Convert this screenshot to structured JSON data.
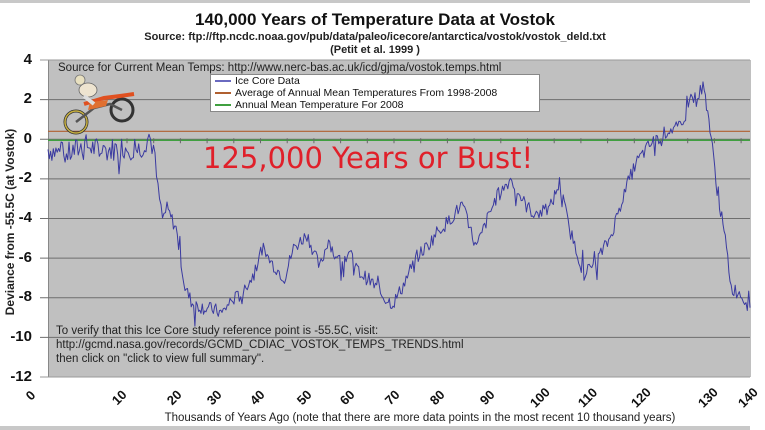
{
  "chart_data": {
    "type": "line",
    "title": "140,000 Years of Temperature Data at Vostok",
    "subtitle": "Source: ftp://ftp.ncdc.noaa.gov/pub/data/paleo/icecore/antarctica/vostok/vostok_deld.txt",
    "subtitle2": "(Petit et al. 1999 )",
    "xlabel": "Thousands of Years Ago (note that there are more data points in the most recent 10 thousand years)",
    "ylabel": "Deviance from -55.5C (at Vostok)",
    "ylim": [
      -12,
      4
    ],
    "yticks": [
      "4",
      "2",
      "0",
      "-2",
      "-4",
      "-6",
      "-8",
      "-10",
      "-12"
    ],
    "xticks": [
      "0",
      "10",
      "20",
      "30",
      "40",
      "50",
      "60",
      "70",
      "80",
      "90",
      "100",
      "110",
      "120",
      "130",
      "140"
    ],
    "grid": true,
    "legend_position": "top-center",
    "series": [
      {
        "name": "Ice Core Data",
        "color": "#3a3aa0",
        "x": [
          0,
          2,
          4,
          6,
          8,
          10,
          11,
          12,
          13,
          14,
          15,
          16,
          18,
          20,
          22,
          25,
          28,
          30,
          32,
          35,
          38,
          40,
          42,
          45,
          47,
          50,
          53,
          55,
          57,
          60,
          62,
          65,
          68,
          70,
          72,
          75,
          78,
          80,
          82,
          85,
          88,
          90,
          92,
          95,
          98,
          100,
          103,
          105,
          107,
          110,
          112,
          115,
          118,
          120,
          122,
          125,
          127,
          128,
          129,
          130,
          131,
          132,
          133,
          134,
          135,
          136,
          138,
          140
        ],
        "values": [
          -0.5,
          -0.8,
          -0.3,
          -0.6,
          -0.4,
          -0.5,
          -0.2,
          0.2,
          -0.5,
          -2.5,
          -4.0,
          -3.5,
          -4.5,
          -7.5,
          -8.3,
          -8.5,
          -8.6,
          -8.8,
          -8.2,
          -7.8,
          -6.8,
          -5.5,
          -6.2,
          -7.0,
          -5.5,
          -4.8,
          -6.5,
          -5.0,
          -6.2,
          -5.8,
          -6.7,
          -7.2,
          -8.0,
          -8.3,
          -7.5,
          -6.0,
          -5.3,
          -4.6,
          -4.2,
          -3.3,
          -5.5,
          -4.2,
          -3.0,
          -2.0,
          -3.3,
          -3.8,
          -3.5,
          -2.2,
          -4.5,
          -6.8,
          -6.3,
          -5.0,
          -2.5,
          -1.2,
          -0.3,
          0.5,
          0.6,
          2.2,
          2.0,
          2.7,
          1.5,
          -0.5,
          -2.5,
          -4.0,
          -5.5,
          -7.5,
          -7.8,
          -8.5
        ]
      },
      {
        "name": "Average of Annual Mean Temperatures From 1998-2008",
        "color": "#b06030",
        "values": [
          0.4
        ]
      },
      {
        "name": "Annual Mean Temperature For 2008",
        "color": "#40a040",
        "values": [
          -0.05
        ]
      }
    ]
  },
  "annotations": {
    "source_current": "Source for Current Mean Temps: http://www.nerc-bas.ac.uk/icd/gjma/vostok.temps.html",
    "headline": "125,000 Years or Bust!",
    "verify_line1": "To verify that this Ice Core study reference point is -55.5C, visit:",
    "verify_line2": "http://gcmd.nasa.gov/records/GCMD_CDIAC_VOSTOK_TEMPS_TRENDS.html",
    "verify_line3": "then click on \"click to view full summary\"."
  },
  "legend": {
    "items": [
      {
        "label": "Ice Core Data",
        "color": "#6a6ac0"
      },
      {
        "label": "Average of Annual Mean Temperatures From 1998-2008",
        "color": "#b06030"
      },
      {
        "label": "Annual Mean Temperature For 2008",
        "color": "#40a040"
      }
    ]
  },
  "colors": {
    "plot_bg": "#c0c0c0",
    "headline": "#e0202a",
    "ice_core": "#3a3aa0",
    "average_line": "#b06030",
    "annual_2008_line": "#40a040"
  },
  "clipart": "motorcycle-rider-icon"
}
